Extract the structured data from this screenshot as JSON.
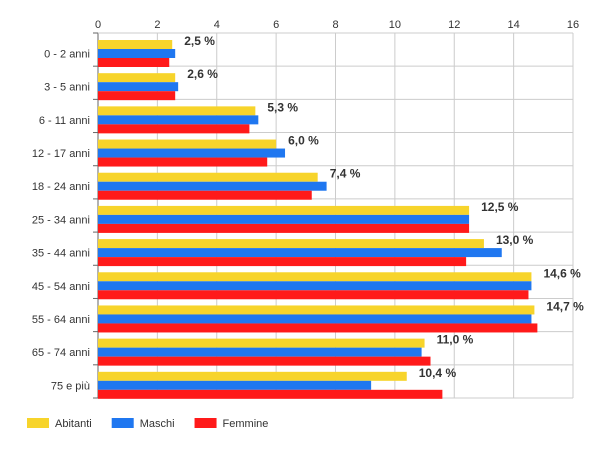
{
  "chart_data": {
    "type": "bar",
    "orientation": "horizontal",
    "categories": [
      "0 - 2 anni",
      "3 - 5 anni",
      "6 - 11 anni",
      "12 - 17 anni",
      "18 - 24 anni",
      "25 - 34 anni",
      "35 - 44 anni",
      "45 - 54 anni",
      "55 - 64 anni",
      "65 - 74 anni",
      "75 e più"
    ],
    "series": [
      {
        "name": "Abitanti",
        "color": "#f7d42b",
        "values": [
          2.5,
          2.6,
          5.3,
          6.0,
          7.4,
          12.5,
          13.0,
          14.6,
          14.7,
          11.0,
          10.4
        ]
      },
      {
        "name": "Maschi",
        "color": "#1f77f0",
        "values": [
          2.6,
          2.7,
          5.4,
          6.3,
          7.7,
          12.5,
          13.6,
          14.6,
          14.6,
          10.9,
          9.2
        ]
      },
      {
        "name": "Femmine",
        "color": "#ff1a1a",
        "values": [
          2.4,
          2.6,
          5.1,
          5.7,
          7.2,
          12.5,
          12.4,
          14.5,
          14.8,
          11.2,
          11.6
        ]
      }
    ],
    "value_labels": [
      "2,5 %",
      "2,6 %",
      "5,3 %",
      "6,0 %",
      "7,4 %",
      "12,5 %",
      "13,0 %",
      "14,6 %",
      "14,7 %",
      "11,0 %",
      "10,4 %"
    ],
    "x_ticks": [
      "0",
      "2",
      "4",
      "6",
      "8",
      "10",
      "12",
      "14",
      "16"
    ],
    "xlim": [
      0,
      16
    ],
    "grid": true,
    "legend_position": "bottom-left"
  }
}
